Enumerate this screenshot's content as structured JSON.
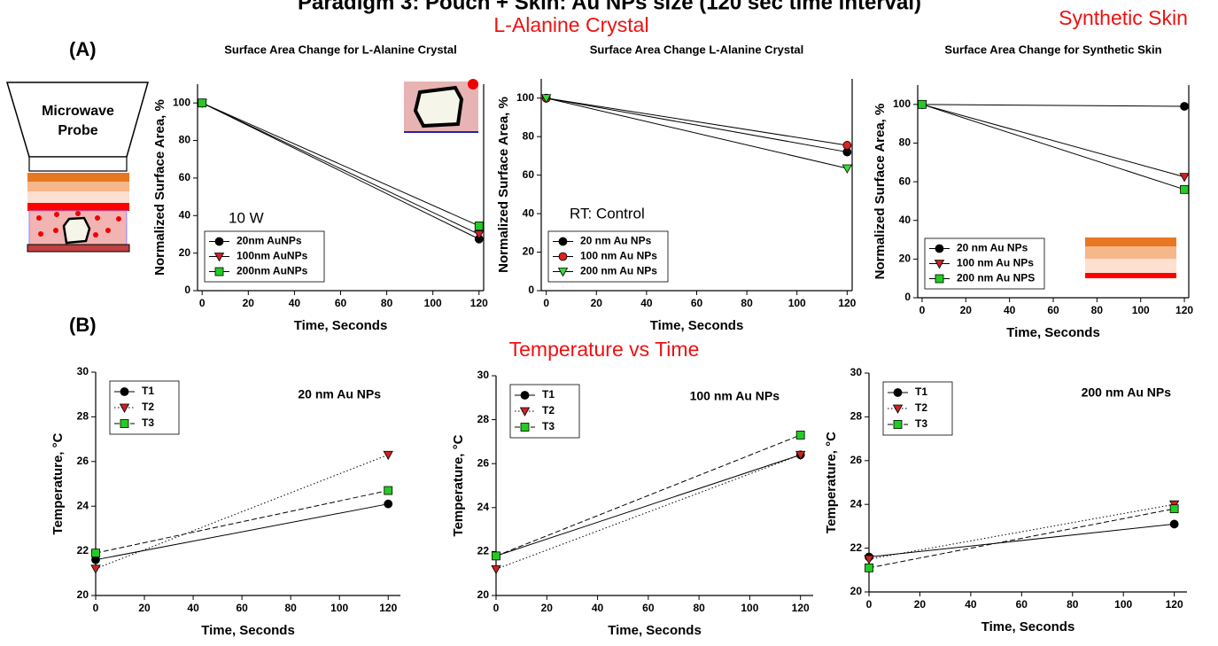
{
  "figure": {
    "title": "Paradigm 3: Pouch + Skin: Au NPs size (120 sec time interval)",
    "panel_a": "(A)",
    "panel_b": "(B)",
    "heading_crystal": "L-Alanine Crystal",
    "heading_skin": "Synthetic Skin",
    "heading_temperature": "Temperature vs Time",
    "diagram_label_1": "Microwave",
    "diagram_label_2": "Probe"
  },
  "chart_data": [
    {
      "type": "line",
      "title": "Surface Area Change for L-Alanine Crystal",
      "annotation": "10 W",
      "x_label": "Time, Seconds",
      "y_label": "Normalized Surface Area, %",
      "x": [
        0,
        120
      ],
      "xlim": [
        -2,
        122
      ],
      "xticks": [
        0,
        20,
        40,
        60,
        80,
        100,
        120
      ],
      "ylim": [
        0,
        110
      ],
      "yticks": [
        0,
        20,
        40,
        60,
        80,
        100
      ],
      "legend": "lower left",
      "series": [
        {
          "name": "20nm AuNPs",
          "color": "#000000",
          "marker": "circle",
          "linestyle": "solid",
          "values": [
            100,
            27.5
          ]
        },
        {
          "name": "100nm AuNPs",
          "color": "#cc2222",
          "marker": "triangle-down",
          "linestyle": "solid",
          "values": [
            100,
            30
          ]
        },
        {
          "name": "200nm AuNPs",
          "color": "#22cc22",
          "marker": "square",
          "linestyle": "solid",
          "values": [
            100,
            34.5
          ]
        }
      ]
    },
    {
      "type": "line",
      "title": "Surface Area Change L-Alanine Crystal",
      "annotation": "RT: Control",
      "x_label": "Time, Seconds",
      "y_label": "Normalized Surface Area, %",
      "x": [
        0,
        120
      ],
      "xlim": [
        -2,
        122
      ],
      "xticks": [
        0,
        20,
        40,
        60,
        80,
        100,
        120
      ],
      "ylim": [
        0,
        110
      ],
      "yticks": [
        0,
        20,
        40,
        60,
        80,
        100
      ],
      "legend": "lower left",
      "series": [
        {
          "name": "20 nm Au NPs",
          "color": "#000000",
          "marker": "circle",
          "linestyle": "solid",
          "values": [
            100,
            72
          ]
        },
        {
          "name": "100 nm Au NPs",
          "color": "#dd2222",
          "marker": "circle",
          "linestyle": "solid",
          "values": [
            100,
            75.5
          ]
        },
        {
          "name": "200 nm Au NPs",
          "color": "#33dd33",
          "marker": "triangle-down",
          "linestyle": "solid",
          "values": [
            100,
            63.5
          ]
        }
      ]
    },
    {
      "type": "line",
      "title": "Surface Area Change for Synthetic Skin",
      "x_label": "Time, Seconds",
      "y_label": "Normalized Surface Area, %",
      "x": [
        0,
        120
      ],
      "xlim": [
        -2,
        122
      ],
      "xticks": [
        0,
        20,
        40,
        60,
        80,
        100,
        120
      ],
      "ylim": [
        0,
        110
      ],
      "yticks": [
        0,
        20,
        40,
        60,
        80,
        100
      ],
      "legend": "lower left",
      "series": [
        {
          "name": "20 nm Au NPs",
          "color": "#000000",
          "marker": "circle",
          "linestyle": "solid",
          "values": [
            100,
            99
          ]
        },
        {
          "name": "100 nm Au NPs",
          "color": "#cc2222",
          "marker": "triangle-down",
          "linestyle": "solid",
          "values": [
            100,
            62.5
          ]
        },
        {
          "name": "200 nm Au NPS",
          "color": "#22cc22",
          "marker": "square",
          "linestyle": "solid",
          "values": [
            100,
            56
          ]
        }
      ]
    },
    {
      "type": "line",
      "annotation": "20 nm Au NPs",
      "x_label": "Time, Seconds",
      "y_label": "Temperature, °C",
      "x": [
        0,
        120
      ],
      "xlim": [
        0,
        125
      ],
      "xticks": [
        0,
        20,
        40,
        60,
        80,
        100,
        120
      ],
      "ylim": [
        20,
        30
      ],
      "yticks": [
        20,
        22,
        24,
        26,
        28,
        30
      ],
      "legend": "upper left",
      "series": [
        {
          "name": "T1",
          "color": "#000000",
          "marker": "circle",
          "linestyle": "solid",
          "values": [
            21.6,
            24.1
          ]
        },
        {
          "name": "T2",
          "color": "#cc2222",
          "marker": "triangle-down",
          "linestyle": "dotted",
          "values": [
            21.2,
            26.3
          ]
        },
        {
          "name": "T3",
          "color": "#22cc22",
          "marker": "square",
          "linestyle": "dashed",
          "values": [
            21.9,
            24.7
          ]
        }
      ]
    },
    {
      "type": "line",
      "annotation": "100 nm Au NPs",
      "x_label": "Time, Seconds",
      "y_label": "Temperature, °C",
      "x": [
        0,
        120
      ],
      "xlim": [
        0,
        125
      ],
      "xticks": [
        0,
        20,
        40,
        60,
        80,
        100,
        120
      ],
      "ylim": [
        20,
        30
      ],
      "yticks": [
        20,
        22,
        24,
        26,
        28,
        30
      ],
      "legend": "upper left",
      "series": [
        {
          "name": "T1",
          "color": "#000000",
          "marker": "circle",
          "linestyle": "solid",
          "values": [
            21.8,
            26.4
          ]
        },
        {
          "name": "T2",
          "color": "#cc2222",
          "marker": "triangle-down",
          "linestyle": "dotted",
          "values": [
            21.2,
            26.4
          ]
        },
        {
          "name": "T3",
          "color": "#22cc22",
          "marker": "square",
          "linestyle": "dashed",
          "values": [
            21.8,
            27.3
          ]
        }
      ]
    },
    {
      "type": "line",
      "annotation": "200 nm Au NPs",
      "x_label": "Time, Seconds",
      "y_label": "Temperature, °C",
      "x": [
        0,
        120
      ],
      "xlim": [
        0,
        125
      ],
      "xticks": [
        0,
        20,
        40,
        60,
        80,
        100,
        120
      ],
      "ylim": [
        20,
        30
      ],
      "yticks": [
        20,
        22,
        24,
        26,
        28,
        30
      ],
      "legend": "upper left",
      "series": [
        {
          "name": "T1",
          "color": "#000000",
          "marker": "circle",
          "linestyle": "solid",
          "values": [
            21.6,
            23.1
          ]
        },
        {
          "name": "T2",
          "color": "#cc2222",
          "marker": "triangle-down",
          "linestyle": "dotted",
          "values": [
            21.5,
            24.0
          ]
        },
        {
          "name": "T3",
          "color": "#22cc22",
          "marker": "square",
          "linestyle": "dashed",
          "values": [
            21.1,
            23.8
          ]
        }
      ]
    }
  ]
}
